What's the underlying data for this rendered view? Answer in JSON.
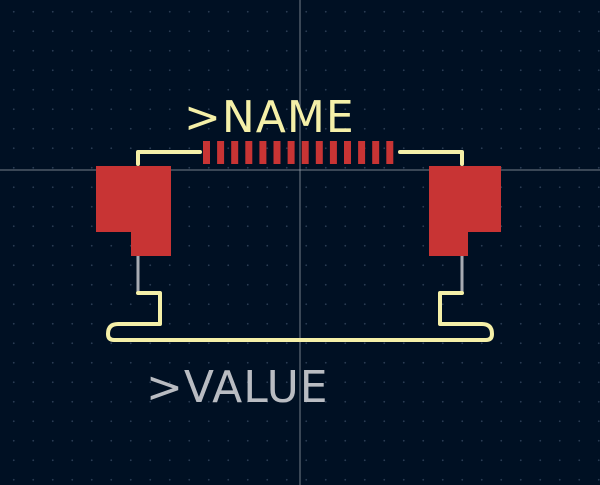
{
  "canvas": {
    "background": "#001023",
    "grid_dots": true
  },
  "colors": {
    "silkscreen": "#f5f0a8",
    "fabrication": "#a7abb3",
    "copper_pad": "#c83434",
    "value_text": "#b9bcc2",
    "crosshair": "#9aa3ad"
  },
  "footprint": {
    "reference_label": ">NAME",
    "value_label": ">VALUE",
    "pin_count": 14,
    "mounting_pads": 2
  }
}
